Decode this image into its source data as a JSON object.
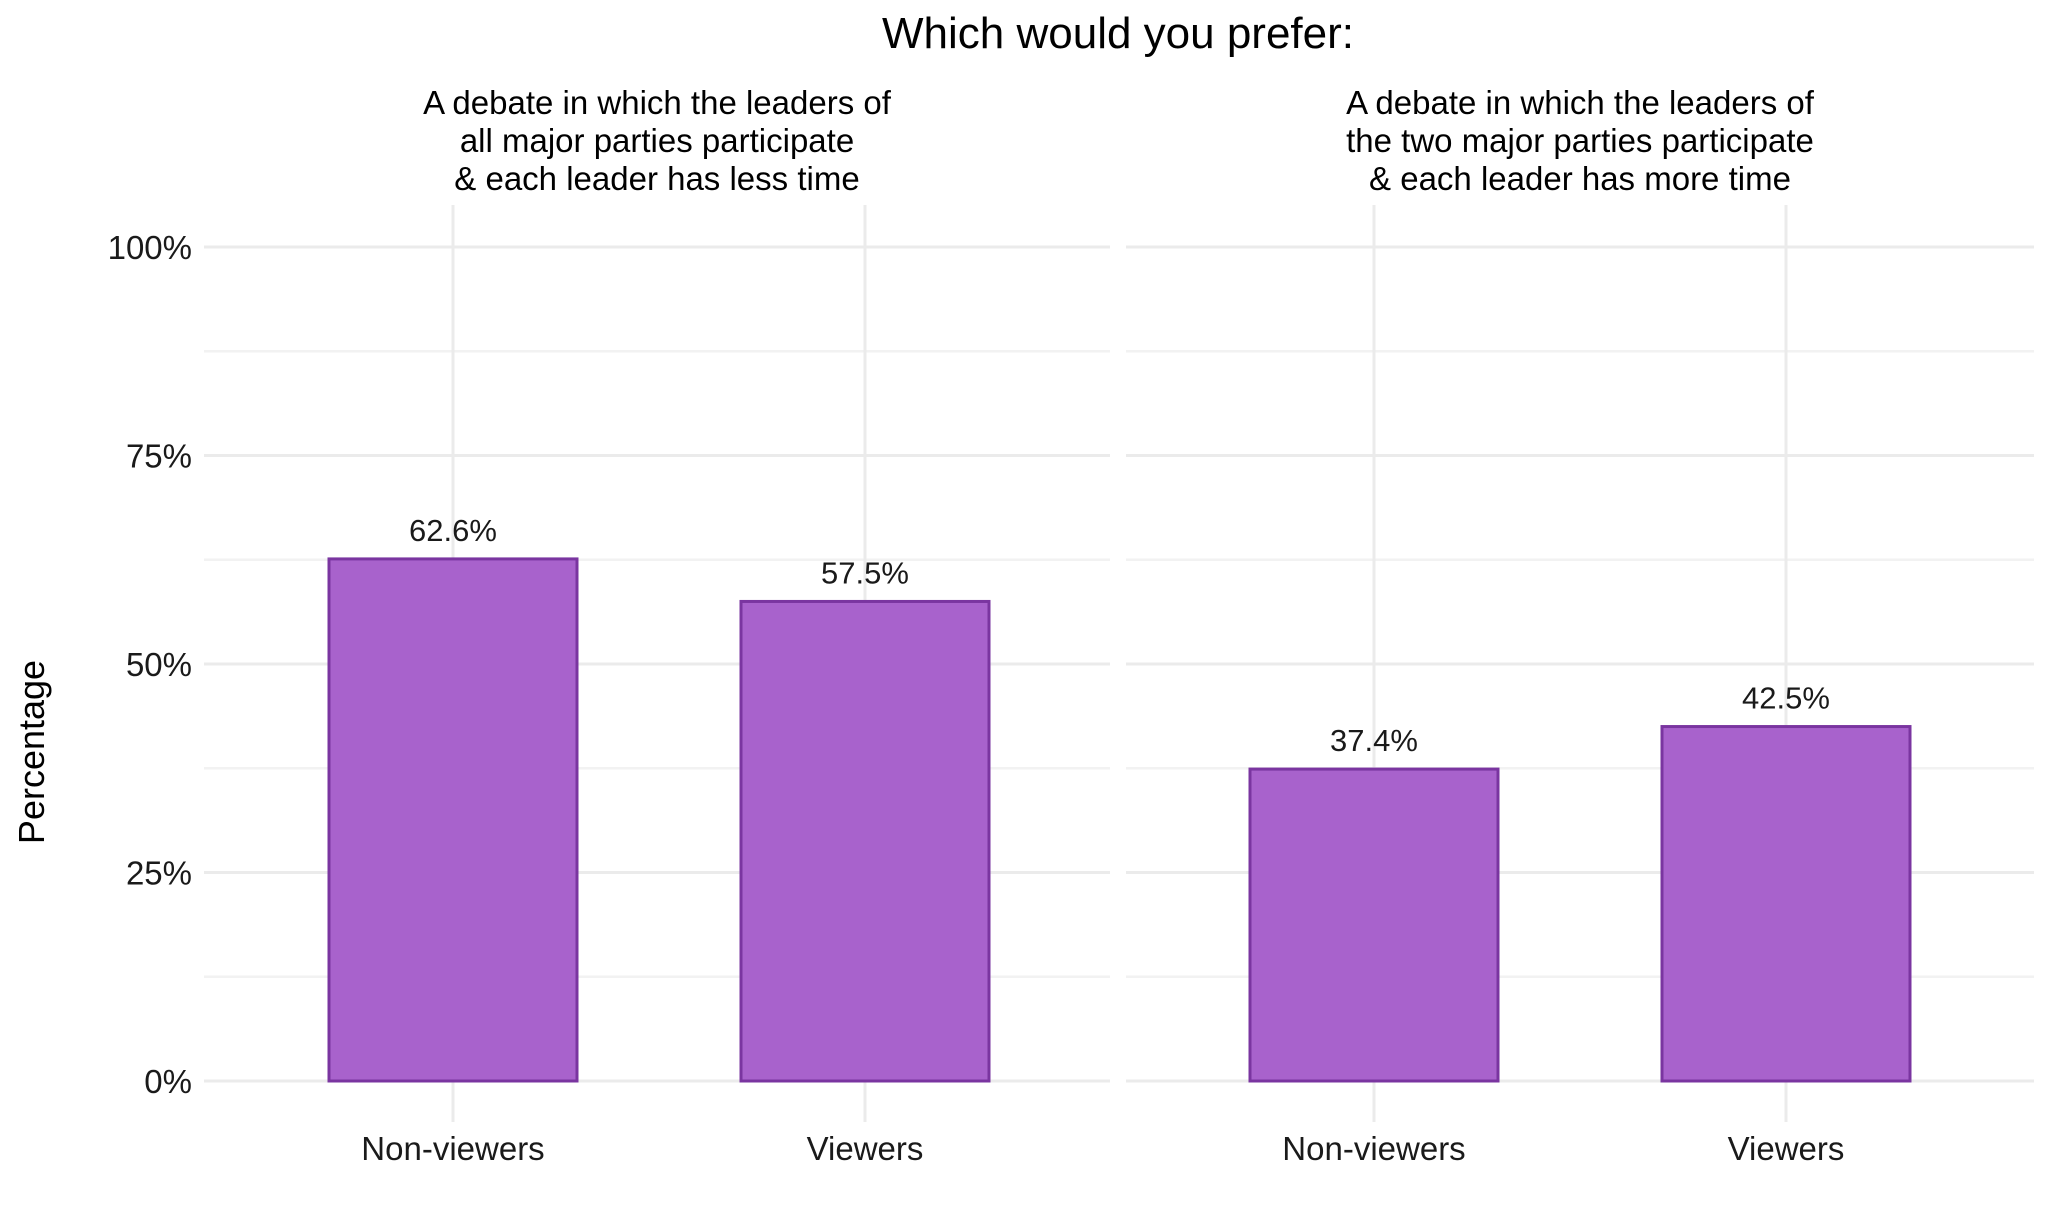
{
  "chart_data": {
    "type": "bar",
    "title": "Which would you prefer:",
    "ylabel": "Percentage",
    "xlabel": "",
    "ylim": [
      0,
      100
    ],
    "yticks": [
      0,
      25,
      50,
      75,
      100
    ],
    "ytick_labels": [
      "0%",
      "25%",
      "50%",
      "75%",
      "100%"
    ],
    "categories": [
      "Non-viewers",
      "Viewers"
    ],
    "grid": true,
    "bar_color": "#a862cc",
    "bar_edge_color": "#7a35a0",
    "facets": [
      {
        "title": [
          "A debate in which the leaders of",
          "all major parties participate",
          "& each leader has less time"
        ],
        "values": [
          62.6,
          57.5
        ],
        "labels": [
          "62.6%",
          "57.5%"
        ]
      },
      {
        "title": [
          "A debate in which the leaders of",
          "the two major parties participate",
          "& each leader has more time"
        ],
        "values": [
          37.4,
          42.5
        ],
        "labels": [
          "37.4%",
          "42.5%"
        ]
      }
    ]
  }
}
